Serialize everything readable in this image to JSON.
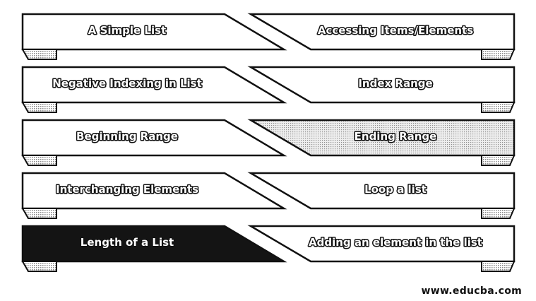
{
  "items": [
    {
      "left": "A Simple List",
      "right": "Accessing Items/Elements"
    },
    {
      "left": "Negative Indexing in List",
      "right": "Index Range"
    },
    {
      "left": "Beginning Range",
      "right": "Ending Range",
      "right_highlight": true
    },
    {
      "left": "Interchanging Elements",
      "right": "Loop a list"
    },
    {
      "left": "Length of a List",
      "right": "Adding an element in the list",
      "left_dark": true
    }
  ],
  "footer": "www.educba.com",
  "colors": {
    "outline": "#111111",
    "fold_shade": "#9a9a9a",
    "dark_fill": "#141414",
    "highlight_fill": "#d8d8d8"
  }
}
